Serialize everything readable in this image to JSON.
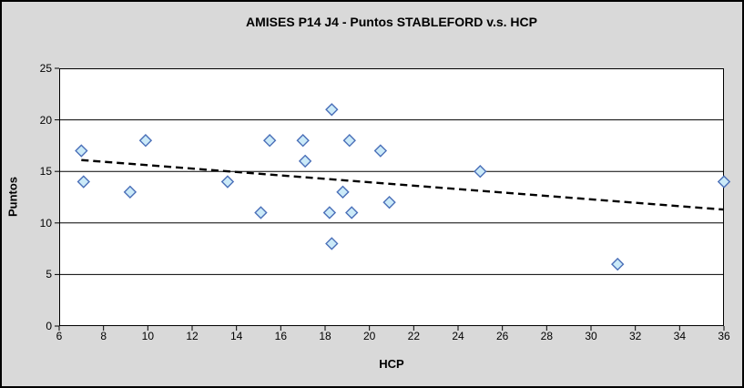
{
  "window": {
    "background": "#D9D9D9",
    "border_color": "#000000"
  },
  "plot": {
    "background": "#FFFFFF",
    "gridline_color": "#000000",
    "text_color": "#000000"
  },
  "chart_data": {
    "type": "scatter",
    "title": "AMISES P14 J4 - Puntos STABLEFORD v.s. HCP",
    "xlabel": "HCP",
    "ylabel": "Puntos",
    "xlim": [
      6,
      36
    ],
    "ylim": [
      0,
      25
    ],
    "x_ticks": [
      6,
      8,
      10,
      12,
      14,
      16,
      18,
      20,
      22,
      24,
      26,
      28,
      30,
      32,
      34,
      36
    ],
    "y_ticks": [
      0,
      5,
      10,
      15,
      20,
      25
    ],
    "grid": "horizontal-only",
    "legend": "none",
    "series": [
      {
        "name": "Puntos STABLEFORD",
        "marker": "diamond",
        "marker_fill": "#CBEAF8",
        "marker_stroke": "#4A6FB8",
        "points": [
          {
            "x": 7.0,
            "y": 17
          },
          {
            "x": 7.1,
            "y": 14
          },
          {
            "x": 9.2,
            "y": 13
          },
          {
            "x": 9.9,
            "y": 18
          },
          {
            "x": 13.6,
            "y": 14
          },
          {
            "x": 15.1,
            "y": 11
          },
          {
            "x": 15.5,
            "y": 18
          },
          {
            "x": 17.0,
            "y": 18
          },
          {
            "x": 17.1,
            "y": 16
          },
          {
            "x": 18.2,
            "y": 11
          },
          {
            "x": 18.3,
            "y": 21
          },
          {
            "x": 18.3,
            "y": 8
          },
          {
            "x": 18.8,
            "y": 13
          },
          {
            "x": 19.1,
            "y": 18
          },
          {
            "x": 19.2,
            "y": 11
          },
          {
            "x": 20.5,
            "y": 17
          },
          {
            "x": 20.9,
            "y": 12
          },
          {
            "x": 25.0,
            "y": 15
          },
          {
            "x": 31.2,
            "y": 6
          },
          {
            "x": 36.0,
            "y": 14
          }
        ]
      }
    ],
    "trendline": {
      "style": "dashed",
      "color": "#000000",
      "x1": 7.0,
      "y1": 16.1,
      "x2": 36.0,
      "y2": 11.3
    }
  }
}
